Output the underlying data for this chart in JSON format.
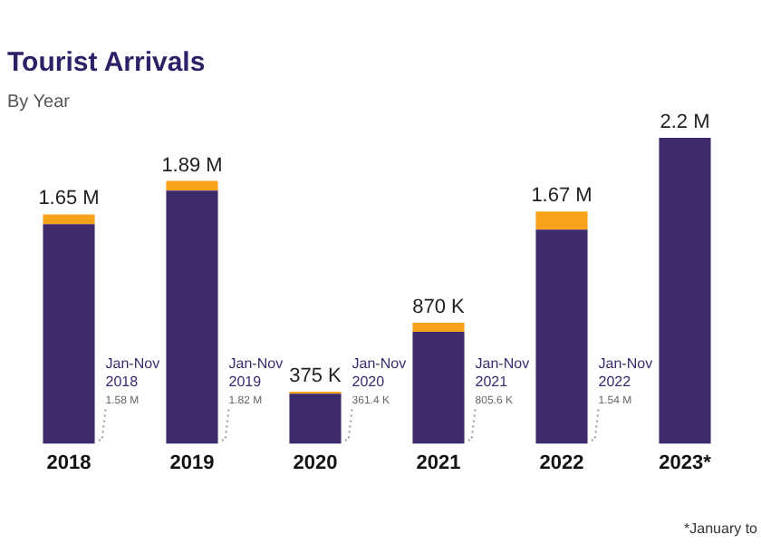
{
  "chart_data": {
    "type": "bar",
    "title": "Tourist Arrivals",
    "subtitle": "By Year",
    "stacked": true,
    "categories": [
      "2018",
      "2019",
      "2020",
      "2021",
      "2022",
      "2023*"
    ],
    "series": [
      {
        "color": "#3d2b6e",
        "values": [
          1.58,
          1.82,
          0.3614,
          0.8056,
          1.54,
          2.2
        ],
        "value_labels": [
          "1.58 M",
          "1.82 M",
          "361.4 K",
          "805.6 K",
          "1.54 M",
          null
        ]
      },
      {
        "color": "#f7a21b",
        "values": [
          0.07,
          0.07,
          0.0136,
          0.0644,
          0.13,
          null
        ]
      }
    ],
    "totals": [
      "1.65 M",
      "1.89 M",
      "375 K",
      "870 K",
      "1.67 M",
      "2.2 M"
    ],
    "annotations": [
      "Jan-Nov 2018",
      "Jan-Nov 2019",
      "Jan-Nov 2020",
      "Jan-Nov 2021",
      "Jan-Nov 2022",
      "*January to"
    ],
    "ylim": [
      0,
      2.2
    ],
    "tick_labels": "x",
    "grid": false,
    "legend": false
  }
}
